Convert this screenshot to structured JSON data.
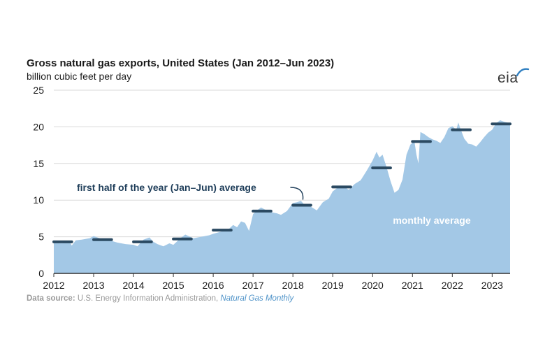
{
  "colors": {
    "area": "#a3c8e6",
    "avg_marker": "#2b4a62",
    "annotation_dark": "#1f3e5a",
    "annotation_light": "#ffffff",
    "grid": "#d9d9d9",
    "source_link": "#4f93c8"
  },
  "logo": {
    "text": "eia",
    "icon": "eia-arc-icon"
  },
  "source": {
    "label": "Data source:",
    "org": "U.S. Energy Information Administration,",
    "publication": "Natural Gas Monthly"
  },
  "chart_data": {
    "type": "area",
    "title": "Gross natural gas exports, United States (Jan 2012–Jun 2023)",
    "ylabel": "billion cubic feet per day",
    "xlabel": "",
    "ylim": [
      0,
      25
    ],
    "xlim": [
      2012,
      2023.45
    ],
    "y_ticks": [
      "0",
      "5",
      "10",
      "15",
      "20",
      "25"
    ],
    "y_tick_values": [
      0,
      5,
      10,
      15,
      20,
      25
    ],
    "x_ticks": [
      "2012",
      "2013",
      "2014",
      "2015",
      "2016",
      "2017",
      "2018",
      "2019",
      "2020",
      "2021",
      "2022",
      "2023"
    ],
    "x_tick_values": [
      2012,
      2013,
      2014,
      2015,
      2016,
      2017,
      2018,
      2019,
      2020,
      2021,
      2022,
      2023
    ],
    "grid": true,
    "series": [
      {
        "name": "monthly average",
        "x": [
          2012.0,
          2012.2,
          2012.4,
          2012.45,
          2012.55,
          2012.7,
          2012.9,
          2013.0,
          2013.2,
          2013.4,
          2013.6,
          2013.8,
          2014.0,
          2014.1,
          2014.25,
          2014.4,
          2014.5,
          2014.6,
          2014.75,
          2014.9,
          2015.0,
          2015.2,
          2015.3,
          2015.5,
          2015.7,
          2015.9,
          2016.0,
          2016.2,
          2016.4,
          2016.5,
          2016.6,
          2016.7,
          2016.8,
          2016.9,
          2017.0,
          2017.1,
          2017.2,
          2017.3,
          2017.5,
          2017.6,
          2017.7,
          2017.85,
          2018.0,
          2018.1,
          2018.2,
          2018.3,
          2018.45,
          2018.6,
          2018.75,
          2018.9,
          2019.0,
          2019.1,
          2019.2,
          2019.3,
          2019.4,
          2019.55,
          2019.7,
          2019.85,
          2020.0,
          2020.1,
          2020.17,
          2020.25,
          2020.35,
          2020.45,
          2020.55,
          2020.65,
          2020.75,
          2020.85,
          2020.95,
          2021.05,
          2021.1,
          2021.15,
          2021.2,
          2021.3,
          2021.4,
          2021.5,
          2021.6,
          2021.7,
          2021.8,
          2021.9,
          2022.0,
          2022.1,
          2022.15,
          2022.2,
          2022.3,
          2022.4,
          2022.5,
          2022.6,
          2022.7,
          2022.8,
          2022.9,
          2023.0,
          2023.1,
          2023.2,
          2023.3,
          2023.45
        ],
        "values": [
          4.2,
          4.1,
          4.3,
          3.8,
          4.5,
          4.6,
          4.8,
          5.1,
          4.7,
          4.5,
          4.2,
          4.0,
          3.9,
          3.7,
          4.6,
          4.9,
          4.3,
          4.0,
          3.7,
          4.1,
          3.9,
          4.9,
          5.3,
          4.8,
          5.0,
          5.2,
          5.4,
          5.7,
          6.1,
          6.6,
          6.3,
          7.1,
          6.9,
          5.8,
          8.1,
          8.6,
          9.0,
          8.7,
          8.3,
          8.2,
          8.0,
          8.5,
          9.6,
          9.7,
          9.9,
          9.3,
          9.1,
          8.6,
          9.7,
          10.2,
          11.2,
          11.6,
          11.9,
          11.8,
          11.4,
          12.2,
          12.7,
          14.0,
          15.4,
          16.6,
          15.8,
          16.2,
          14.5,
          12.6,
          11.0,
          11.4,
          12.8,
          16.2,
          17.6,
          18.0,
          16.2,
          15.0,
          19.3,
          19.0,
          18.6,
          18.3,
          18.1,
          17.8,
          18.6,
          19.8,
          20.1,
          19.6,
          20.6,
          19.8,
          18.4,
          17.7,
          17.6,
          17.3,
          17.9,
          18.6,
          19.2,
          19.6,
          20.5,
          20.9,
          20.7,
          20.5
        ]
      },
      {
        "name": "first half of the year (Jan–Jun) average",
        "x": [
          2012,
          2013,
          2014,
          2015,
          2016,
          2017,
          2018,
          2019,
          2020,
          2021,
          2022,
          2023
        ],
        "values": [
          4.3,
          4.6,
          4.3,
          4.7,
          5.9,
          8.5,
          9.3,
          11.8,
          14.4,
          18.0,
          19.6,
          20.4
        ]
      }
    ],
    "annotations": [
      {
        "text": "first half of the year (Jan–Jun) average",
        "target_x": 2018.25,
        "target_value": 9.3
      },
      {
        "text": "monthly average"
      }
    ]
  }
}
